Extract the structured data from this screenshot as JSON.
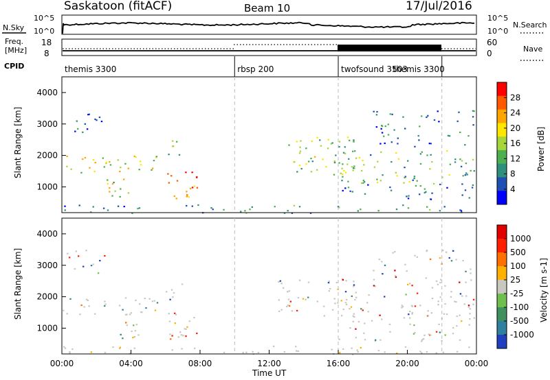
{
  "header": {
    "station": "Saskatoon (fitACF)",
    "beam": "Beam 10",
    "date": "17/Jul/2016"
  },
  "status_panels": {
    "nsky_label": "N.Sky",
    "nsky_ticks": [
      "10^5",
      "10^0"
    ],
    "nsearch_label": "N.Search",
    "nsearch_ticks": [
      "10^5",
      "10^0"
    ],
    "freq_label_1": "Freq.",
    "freq_label_2": "[MHz]",
    "freq_ticks": [
      "18",
      "8"
    ],
    "nave_label": "Nave",
    "nave_ticks": [
      "60",
      "0"
    ],
    "cpid_label": "CPID"
  },
  "cpid_segments": [
    {
      "name": "themis 3300",
      "start": 0
    },
    {
      "name": "rbsp 200",
      "start": 10
    },
    {
      "name": "twofsound 3503",
      "start": 16
    },
    {
      "name": "themis 3300",
      "start": 19
    }
  ],
  "cpid_dividers": [
    10,
    16,
    22
  ],
  "chart_data": [
    {
      "type": "heatmap",
      "panel": "power",
      "ylabel": "Slant Range [km]",
      "yticks": [
        "4000",
        "3000",
        "2000",
        "1000"
      ],
      "ylim": [
        180,
        4500
      ],
      "xlim": [
        0,
        24
      ],
      "colorbar_label": "Power [dB]",
      "colorbar_ticks": [
        "28",
        "24",
        "20",
        "16",
        "12",
        "8",
        "4"
      ],
      "colorscale": [
        "#0000ff",
        "#1f4fb3",
        "#2f8f7f",
        "#4caf50",
        "#a6d63a",
        "#ffe600",
        "#ffa500",
        "#ff5a00",
        "#ff0000"
      ],
      "scatter_bands": [
        {
          "t0": 0.0,
          "t1": 5.8,
          "r0": 1450,
          "r1": 2000,
          "level": 0.55
        },
        {
          "t0": 5.8,
          "t1": 7.0,
          "r0": 1900,
          "r1": 2500,
          "level": 0.45
        },
        {
          "t0": 6.0,
          "t1": 7.8,
          "r0": 650,
          "r1": 1500,
          "level": 0.9
        },
        {
          "t0": 2.5,
          "t1": 4.5,
          "r0": 700,
          "r1": 1300,
          "level": 0.55
        },
        {
          "t0": 0.0,
          "t1": 24.0,
          "r0": 180,
          "r1": 450,
          "level": 0.25
        },
        {
          "t0": 12.5,
          "t1": 17.0,
          "r0": 1400,
          "r1": 2600,
          "level": 0.45
        },
        {
          "t0": 16.0,
          "t1": 24.0,
          "r0": 1100,
          "r1": 2200,
          "level": 0.4
        },
        {
          "t0": 16.0,
          "t1": 24.0,
          "r0": 600,
          "r1": 1100,
          "level": 0.2
        },
        {
          "t0": 0.0,
          "t1": 2.5,
          "r0": 2700,
          "r1": 3500,
          "level": 0.1
        },
        {
          "t0": 18.0,
          "t1": 24.0,
          "r0": 2300,
          "r1": 3500,
          "level": 0.15
        }
      ]
    },
    {
      "type": "heatmap",
      "panel": "velocity",
      "ylabel": "Slant Range [km]",
      "yticks": [
        "4000",
        "3000",
        "2000",
        "1000"
      ],
      "ylim": [
        180,
        4500
      ],
      "xlim": [
        0,
        24
      ],
      "xlabel": "Time UT",
      "xticks": [
        "00:00",
        "04:00",
        "08:00",
        "12:00",
        "16:00",
        "20:00",
        "00:00"
      ],
      "colorbar_label": "Velocity [m s-1]",
      "colorbar_ticks": [
        "1000",
        "500",
        "100",
        "25",
        "-25",
        "-100",
        "-500",
        "-1000"
      ],
      "colorscale": [
        "#1f3fbf",
        "#2f7f9f",
        "#3f8f5f",
        "#6fbf4f",
        "#c8c8c0",
        "#ffb000",
        "#ff7000",
        "#ff2000",
        "#e00000"
      ],
      "ground_scatter_color": "#c8c8c0"
    }
  ]
}
